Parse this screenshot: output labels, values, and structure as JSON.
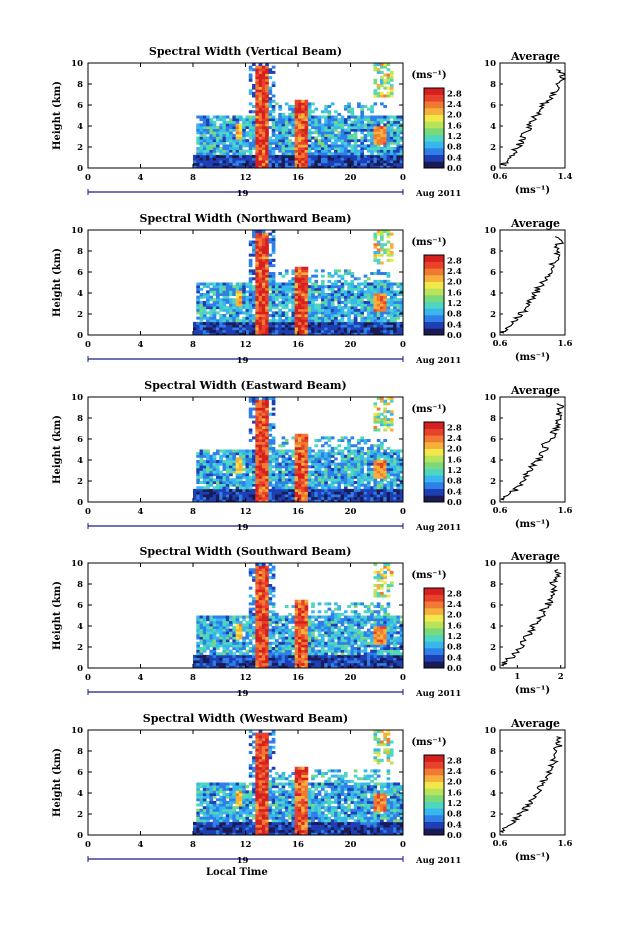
{
  "figure": {
    "xlabel": "Local Time",
    "units": "(ms⁻¹)"
  },
  "chart_data": [
    {
      "type": "heatmap",
      "title": "Spectral Width (Vertical Beam)",
      "ylabel": "Height (km)",
      "xlabel": "",
      "date_label": "19",
      "month_label": "Aug 2011",
      "x_ticks": [
        "0",
        "4",
        "8",
        "12",
        "16",
        "20",
        "0"
      ],
      "y_ticks": [
        "0",
        "2",
        "4",
        "6",
        "8",
        "10"
      ],
      "xlim": [
        0,
        24
      ],
      "ylim": [
        0,
        10
      ],
      "colorbar": {
        "label": "(ms⁻¹)",
        "ticks": [
          "0.0",
          "0.4",
          "0.8",
          "1.2",
          "1.6",
          "2.0",
          "2.4",
          "2.8"
        ],
        "range": [
          0,
          3.0
        ]
      },
      "average_profile": {
        "title": "Average",
        "xlabel": "(ms⁻¹)",
        "x_ticks": [
          "0.6",
          "1.4"
        ],
        "xlim": [
          0.6,
          1.4
        ],
        "y_ticks": [
          "0",
          "2",
          "4",
          "6",
          "8",
          "10"
        ],
        "height": [
          0.2,
          0.5,
          1,
          1.5,
          2,
          2.5,
          3,
          3.5,
          4,
          4.5,
          5,
          5.5,
          6,
          6.5,
          7,
          7.5,
          8,
          8.5,
          9,
          9.5
        ],
        "value": [
          0.62,
          0.66,
          0.72,
          0.78,
          0.82,
          0.86,
          0.88,
          0.92,
          0.97,
          1.0,
          1.05,
          1.1,
          1.12,
          1.2,
          1.25,
          1.32,
          1.3,
          1.35,
          1.38,
          1.3
        ]
      }
    },
    {
      "type": "heatmap",
      "title": "Spectral Width (Northward Beam)",
      "ylabel": "Height (km)",
      "xlabel": "",
      "date_label": "19",
      "month_label": "Aug 2011",
      "x_ticks": [
        "0",
        "4",
        "8",
        "12",
        "16",
        "20",
        "0"
      ],
      "y_ticks": [
        "0",
        "2",
        "4",
        "6",
        "8",
        "10"
      ],
      "xlim": [
        0,
        24
      ],
      "ylim": [
        0,
        10
      ],
      "colorbar": {
        "label": "(ms⁻¹)",
        "ticks": [
          "0.0",
          "0.4",
          "0.8",
          "1.2",
          "1.6",
          "2.0",
          "2.4",
          "2.8"
        ],
        "range": [
          0,
          3.0
        ]
      },
      "average_profile": {
        "title": "Average",
        "xlabel": "(ms⁻¹)",
        "x_ticks": [
          "0.6",
          "1.6"
        ],
        "xlim": [
          0.6,
          1.6
        ],
        "y_ticks": [
          "0",
          "2",
          "4",
          "6",
          "8",
          "10"
        ],
        "height": [
          0.2,
          0.5,
          1,
          1.5,
          2,
          2.5,
          3,
          3.5,
          4,
          4.5,
          5,
          5.5,
          6,
          6.5,
          7,
          7.5,
          8,
          8.5,
          9,
          9.5
        ],
        "value": [
          0.62,
          0.68,
          0.75,
          0.85,
          0.92,
          1.0,
          1.05,
          1.1,
          1.15,
          1.2,
          1.25,
          1.3,
          1.35,
          1.4,
          1.45,
          1.5,
          1.45,
          1.5,
          1.55,
          1.45
        ]
      }
    },
    {
      "type": "heatmap",
      "title": "Spectral Width (Eastward Beam)",
      "ylabel": "Height (km)",
      "xlabel": "",
      "date_label": "19",
      "month_label": "Aug 2011",
      "x_ticks": [
        "0",
        "4",
        "8",
        "12",
        "16",
        "20",
        "0"
      ],
      "y_ticks": [
        "0",
        "2",
        "4",
        "6",
        "8",
        "10"
      ],
      "xlim": [
        0,
        24
      ],
      "ylim": [
        0,
        10
      ],
      "colorbar": {
        "label": "(ms⁻¹)",
        "ticks": [
          "0.0",
          "0.4",
          "0.8",
          "1.2",
          "1.6",
          "2.0",
          "2.4",
          "2.8"
        ],
        "range": [
          0,
          3.0
        ]
      },
      "average_profile": {
        "title": "Average",
        "xlabel": "(ms⁻¹)",
        "x_ticks": [
          "0.6",
          "1.6"
        ],
        "xlim": [
          0.6,
          1.6
        ],
        "y_ticks": [
          "0",
          "2",
          "4",
          "6",
          "8",
          "10"
        ],
        "height": [
          0.2,
          0.5,
          1,
          1.5,
          2,
          2.5,
          3,
          3.5,
          4,
          4.5,
          5,
          5.5,
          6,
          6.5,
          7,
          7.5,
          8,
          8.5,
          9,
          9.5
        ],
        "value": [
          0.63,
          0.7,
          0.8,
          0.9,
          0.95,
          1.0,
          1.05,
          1.1,
          1.2,
          1.25,
          1.28,
          1.3,
          1.4,
          1.42,
          1.45,
          1.5,
          1.48,
          1.52,
          1.55,
          1.5
        ]
      }
    },
    {
      "type": "heatmap",
      "title": "Spectral Width (Southward Beam)",
      "ylabel": "Height (km)",
      "xlabel": "",
      "date_label": "19",
      "month_label": "Aug 2011",
      "x_ticks": [
        "0",
        "4",
        "8",
        "12",
        "16",
        "20",
        "0"
      ],
      "y_ticks": [
        "0",
        "2",
        "4",
        "6",
        "8",
        "10"
      ],
      "xlim": [
        0,
        24
      ],
      "ylim": [
        0,
        10
      ],
      "colorbar": {
        "label": "(ms⁻¹)",
        "ticks": [
          "0.0",
          "0.4",
          "0.8",
          "1.2",
          "1.6",
          "2.0",
          "2.4",
          "2.8"
        ],
        "range": [
          0,
          3.0
        ]
      },
      "average_profile": {
        "title": "Average",
        "xlabel": "(ms⁻¹)",
        "x_ticks": [
          "1",
          "2"
        ],
        "xlim": [
          0.6,
          2.1
        ],
        "y_ticks": [
          "0",
          "2",
          "4",
          "6",
          "8",
          "10"
        ],
        "height": [
          0.2,
          0.5,
          1,
          1.5,
          2,
          2.5,
          3,
          3.5,
          4,
          4.5,
          5,
          5.5,
          6,
          6.5,
          7,
          7.5,
          8,
          8.5,
          9,
          9.5
        ],
        "value": [
          0.65,
          0.72,
          0.85,
          0.95,
          1.05,
          1.15,
          1.2,
          1.3,
          1.35,
          1.45,
          1.55,
          1.6,
          1.7,
          1.75,
          1.8,
          1.85,
          1.8,
          1.9,
          1.95,
          1.85
        ]
      }
    },
    {
      "type": "heatmap",
      "title": "Spectral Width (Westward Beam)",
      "ylabel": "Height (km)",
      "xlabel": "Local Time",
      "date_label": "19",
      "month_label": "Aug 2011",
      "x_ticks": [
        "0",
        "4",
        "8",
        "12",
        "16",
        "20",
        "0"
      ],
      "y_ticks": [
        "0",
        "2",
        "4",
        "6",
        "8",
        "10"
      ],
      "xlim": [
        0,
        24
      ],
      "ylim": [
        0,
        10
      ],
      "colorbar": {
        "label": "(ms⁻¹)",
        "ticks": [
          "0.0",
          "0.4",
          "0.8",
          "1.2",
          "1.6",
          "2.0",
          "2.4",
          "2.8"
        ],
        "range": [
          0,
          3.0
        ]
      },
      "average_profile": {
        "title": "Average",
        "xlabel": "(ms⁻¹)",
        "x_ticks": [
          "0.6",
          "1.6"
        ],
        "xlim": [
          0.6,
          1.6
        ],
        "y_ticks": [
          "0",
          "2",
          "4",
          "6",
          "8",
          "10"
        ],
        "height": [
          0.2,
          0.5,
          1,
          1.5,
          2,
          2.5,
          3,
          3.5,
          4,
          4.5,
          5,
          5.5,
          6,
          6.5,
          7,
          7.5,
          8,
          8.5,
          9,
          9.5
        ],
        "value": [
          0.63,
          0.68,
          0.75,
          0.85,
          0.92,
          1.0,
          1.05,
          1.1,
          1.15,
          1.2,
          1.25,
          1.3,
          1.35,
          1.4,
          1.42,
          1.48,
          1.45,
          1.5,
          1.52,
          1.45
        ]
      }
    }
  ]
}
